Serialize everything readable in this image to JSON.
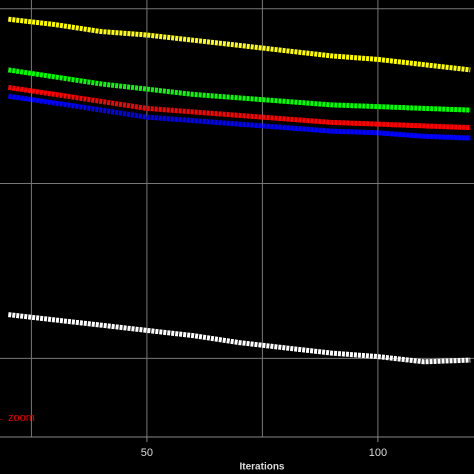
{
  "chart_data": {
    "type": "line",
    "x_label": "Iterations",
    "annotation": "← zoom",
    "x": [
      20,
      30,
      40,
      50,
      60,
      70,
      80,
      90,
      100,
      110,
      120
    ],
    "series": [
      {
        "color": "#ffff00",
        "values": [
          2.94,
          2.91,
          2.87,
          2.85,
          2.82,
          2.79,
          2.76,
          2.73,
          2.71,
          2.68,
          2.65
        ]
      },
      {
        "color": "#00ff00",
        "values": [
          2.65,
          2.61,
          2.57,
          2.54,
          2.51,
          2.49,
          2.47,
          2.45,
          2.44,
          2.43,
          2.42
        ]
      },
      {
        "color": "#ff0000",
        "values": [
          2.55,
          2.51,
          2.47,
          2.43,
          2.41,
          2.39,
          2.37,
          2.35,
          2.34,
          2.33,
          2.32
        ]
      },
      {
        "color": "#0000ff",
        "values": [
          2.5,
          2.46,
          2.42,
          2.38,
          2.36,
          2.34,
          2.32,
          2.3,
          2.29,
          2.27,
          2.26
        ]
      },
      {
        "color": "#ffffff",
        "values": [
          1.25,
          1.22,
          1.19,
          1.16,
          1.13,
          1.09,
          1.06,
          1.03,
          1.01,
          0.98,
          0.99
        ]
      }
    ],
    "xlim": [
      18.2,
      120.8
    ],
    "xticks": [
      50,
      100
    ],
    "xgrid": [
      25,
      50,
      75,
      100
    ],
    "ylim": [
      0.55,
      3.05
    ],
    "ygrid": [
      1,
      2,
      3
    ],
    "grid": true
  }
}
